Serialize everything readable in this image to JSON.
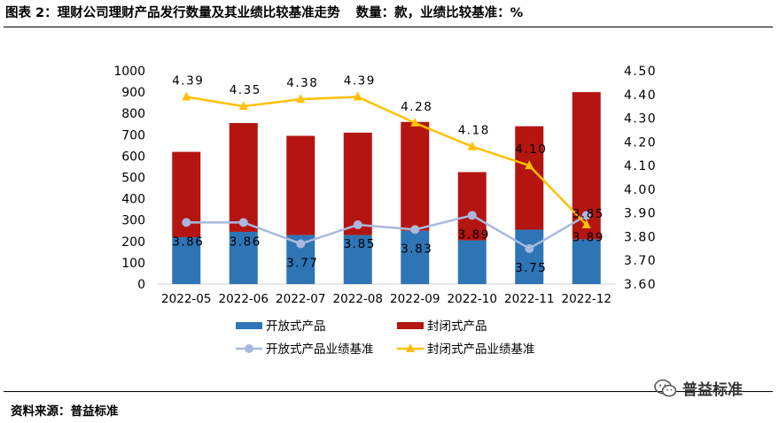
{
  "header": {
    "title": "图表 2：理财公司理财产品发行数量及其业绩比较基准走势",
    "units": "数量：款，业绩比较基准：%"
  },
  "footer": {
    "source": "资料来源：普益标准",
    "watermark": "普益标准",
    "watermark_icon": "wechat-icon"
  },
  "chart_data": {
    "type": "bar",
    "categories": [
      "2022-05",
      "2022-06",
      "2022-07",
      "2022-08",
      "2022-09",
      "2022-10",
      "2022-11",
      "2022-12"
    ],
    "series": [
      {
        "name": "开放式产品",
        "kind": "bar-stacked",
        "axis": "left",
        "color": "#2e75b6",
        "values": [
          220,
          245,
          230,
          230,
          250,
          205,
          255,
          210
        ]
      },
      {
        "name": "封闭式产品",
        "kind": "bar-stacked",
        "axis": "left",
        "color": "#b41510",
        "values": [
          400,
          510,
          465,
          480,
          510,
          320,
          485,
          690
        ]
      },
      {
        "name": "开放式产品业绩基准",
        "kind": "line",
        "axis": "right",
        "color": "#a9b8dc",
        "values": [
          3.86,
          3.86,
          3.77,
          3.85,
          3.83,
          3.89,
          3.75,
          3.89
        ],
        "labels": [
          "3.86",
          "3.86",
          "3.77",
          "3.85",
          "3.83",
          "3.89",
          "3.75",
          "3.89"
        ]
      },
      {
        "name": "封闭式产品业绩基准",
        "kind": "line",
        "axis": "right",
        "color": "#ffc000",
        "values": [
          4.39,
          4.35,
          4.38,
          4.39,
          4.28,
          4.18,
          4.1,
          3.85
        ],
        "labels": [
          "4.39",
          "4.35",
          "4.38",
          "4.39",
          "4.28",
          "4.18",
          "4.10",
          "3.85"
        ]
      }
    ],
    "y_left": {
      "min": 0,
      "max": 1000,
      "step": 100,
      "ticks": [
        "0",
        "100",
        "200",
        "300",
        "400",
        "500",
        "600",
        "700",
        "800",
        "900",
        "1000"
      ]
    },
    "y_right": {
      "min": 3.6,
      "max": 4.5,
      "step": 0.1,
      "ticks": [
        "3.60",
        "3.70",
        "3.80",
        "3.90",
        "4.00",
        "4.10",
        "4.20",
        "4.30",
        "4.40",
        "4.50"
      ]
    },
    "legend": {
      "placement": "bottom",
      "columns": 2
    },
    "grid": false
  }
}
